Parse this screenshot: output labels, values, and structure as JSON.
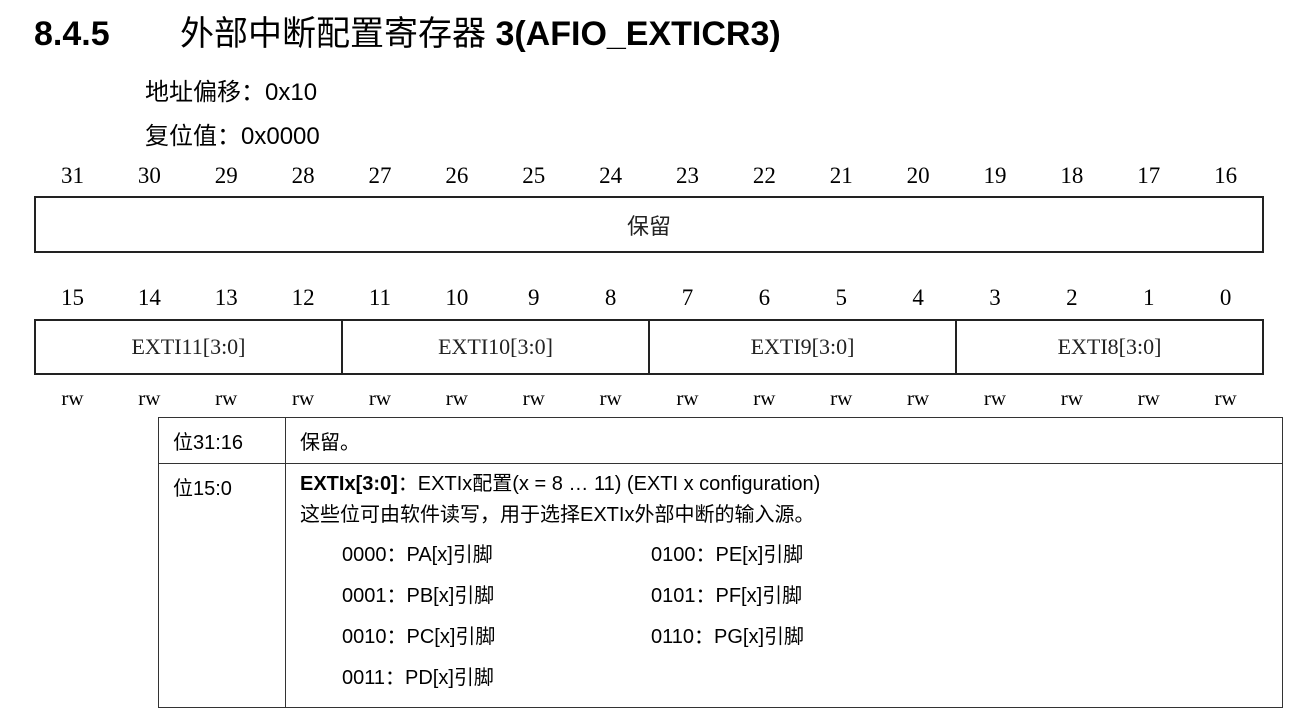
{
  "title": {
    "number": "8.4.5",
    "text": "外部中断配置寄存器 ",
    "en": "3(AFIO_EXTICR3)"
  },
  "address_offset": "地址偏移：0x10",
  "reset_value": "复位值：0x0000",
  "high_bits": [
    "31",
    "30",
    "29",
    "28",
    "27",
    "26",
    "25",
    "24",
    "23",
    "22",
    "21",
    "20",
    "19",
    "18",
    "17",
    "16"
  ],
  "high_fields": [
    "保留"
  ],
  "low_bits": [
    "15",
    "14",
    "13",
    "12",
    "11",
    "10",
    "9",
    "8",
    "7",
    "6",
    "5",
    "4",
    "3",
    "2",
    "1",
    "0"
  ],
  "low_fields": [
    "EXTI11[3:0]",
    "EXTI10[3:0]",
    "EXTI9[3:0]",
    "EXTI8[3:0]"
  ],
  "access": [
    "rw",
    "rw",
    "rw",
    "rw",
    "rw",
    "rw",
    "rw",
    "rw",
    "rw",
    "rw",
    "rw",
    "rw",
    "rw",
    "rw",
    "rw",
    "rw"
  ],
  "table": {
    "rows": [
      {
        "bits": "位31:16",
        "desc": "保留。"
      },
      {
        "bits": "位15:0",
        "field": "EXTIx[3:0]",
        "field_desc": "：EXTIx配置(x = 8 … 11) (EXTI x configuration)",
        "desc": "这些位可由软件读写，用于选择EXTIx外部中断的输入源。",
        "options": [
          "0000：PA[x]引脚",
          "0100：PE[x]引脚",
          "0001：PB[x]引脚",
          "0101：PF[x]引脚",
          "0010：PC[x]引脚",
          "0110：PG[x]引脚",
          "0011：PD[x]引脚"
        ]
      }
    ]
  }
}
